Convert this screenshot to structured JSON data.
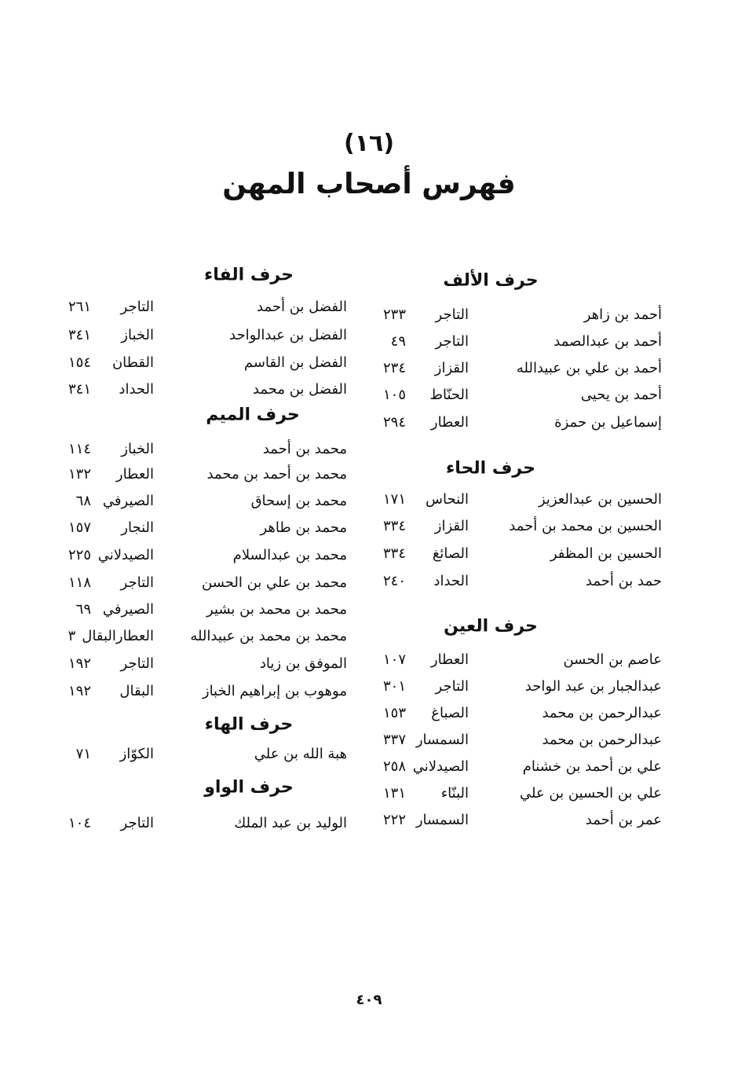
{
  "index_number": "(١٦)",
  "title": "فهرس أصحاب المهن",
  "columns": [
    {
      "sections": [
        {
          "heading": "حرف الألف",
          "entries": [
            {
              "name": "أحمد بن زاهر",
              "profession": "التاجر",
              "page": "٢٣٣"
            },
            {
              "name": "أحمد بن عبدالصمد",
              "profession": "التاجر",
              "page": "٤٩"
            },
            {
              "name": "أحمد بن علي بن عبيدالله",
              "profession": "القزاز",
              "page": "٢٣٤"
            },
            {
              "name": "أحمد بن يحيى",
              "profession": "الحنّاط",
              "page": "١٠٥"
            },
            {
              "name": "إسماعيل بن حمزة",
              "profession": "العطار",
              "page": "٢٩٤"
            }
          ]
        },
        {
          "heading": "حرف الحاء",
          "entries": [
            {
              "name": "الحسين بن عبدالعزيز",
              "profession": "النحاس",
              "page": "١٧١"
            },
            {
              "name": "الحسين بن محمد بن أحمد",
              "profession": "القزاز",
              "page": "٣٣٤"
            },
            {
              "name": "الحسين بن المظفر",
              "profession": "الصائغ",
              "page": "٣٣٤"
            },
            {
              "name": "حمد بن أحمد",
              "profession": "الحداد",
              "page": "٢٤٠"
            }
          ]
        },
        {
          "heading": "حرف العين",
          "entries": [
            {
              "name": "عاصم بن الحسن",
              "profession": "العطار",
              "page": "١٠٧"
            },
            {
              "name": "عبدالجبار بن عبد الواحد",
              "profession": "التاجر",
              "page": "٣٠١"
            },
            {
              "name": "عبدالرحمن بن محمد",
              "profession": "الصباغ",
              "page": "١٥٣"
            },
            {
              "name": "عبدالرحمن بن محمد",
              "profession": "السمسار",
              "page": "٣٣٧"
            },
            {
              "name": "علي بن أحمد بن خشنام",
              "profession": "الصيدلاني",
              "page": "٢٥٨"
            },
            {
              "name": "علي بن الحسين بن علي",
              "profession": "البنّاء",
              "page": "١٣١"
            },
            {
              "name": "عمر بن أحمد",
              "profession": "السمسار",
              "page": "٢٢٢"
            }
          ]
        }
      ]
    },
    {
      "sections": [
        {
          "heading": "حرف الفاء",
          "entries": [
            {
              "name": "الفضل بن أحمد",
              "profession": "التاجر",
              "page": "٢٦١"
            },
            {
              "name": "الفضل بن عبدالواحد",
              "profession": "الخباز",
              "page": "٣٤١"
            },
            {
              "name": "الفضل بن القاسم",
              "profession": "القطان",
              "page": "١٥٤"
            },
            {
              "name": "الفضل بن محمد",
              "profession": "الحداد",
              "page": "٣٤١"
            }
          ]
        },
        {
          "heading": "حرف الميم",
          "entries": [
            {
              "name": "محمد بن أحمد",
              "profession": "الخباز",
              "page": "١١٤"
            },
            {
              "name": "محمد بن أحمد بن محمد",
              "profession": "العطار",
              "page": "١٣٢"
            },
            {
              "name": "محمد بن إسحاق",
              "profession": "الصيرفي",
              "page": "٦٨"
            },
            {
              "name": "محمد بن طاهر",
              "profession": "النجار",
              "page": "١٥٧"
            },
            {
              "name": "محمد بن عبدالسلام",
              "profession": "الصيدلاني",
              "page": "٢٢٥"
            },
            {
              "name": "محمد بن علي بن الحسن",
              "profession": "التاجر",
              "page": "١١٨"
            },
            {
              "name": "محمد بن محمد بن بشير",
              "profession": "الصيرفي",
              "page": "٦٩"
            },
            {
              "name": "محمد بن محمد بن عبيدالله",
              "profession": "العطارالبقال",
              "page": "٣"
            },
            {
              "name": "الموفق بن زياد",
              "profession": "التاجر",
              "page": "١٩٢"
            },
            {
              "name": "موهوب بن إبراهيم الخباز",
              "profession": "البقال",
              "page": "١٩٢"
            }
          ]
        },
        {
          "heading": "حرف الهاء",
          "entries": [
            {
              "name": "هبة الله بن علي",
              "profession": "الكوّاز",
              "page": "٧١"
            }
          ]
        },
        {
          "heading": "حرف الواو",
          "entries": [
            {
              "name": "الوليد بن عبد الملك",
              "profession": "التاجر",
              "page": "١٠٤"
            }
          ]
        }
      ]
    }
  ],
  "page_number": "٤٠٩"
}
